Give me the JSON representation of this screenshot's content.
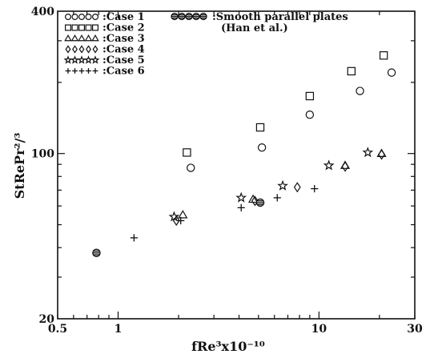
{
  "chart_data": {
    "type": "scatter",
    "title": "",
    "xlabel": "fRe³x10⁻¹⁰",
    "ylabel": "StRePr²/³",
    "xscale": "log",
    "yscale": "log",
    "xlim": [
      0.5,
      30
    ],
    "ylim": [
      20,
      400
    ],
    "xticks": [
      {
        "value": 0.5,
        "label": "0.5"
      },
      {
        "value": 1,
        "label": "1"
      },
      {
        "value": 10,
        "label": "10"
      },
      {
        "value": 30,
        "label": "30"
      }
    ],
    "yticks": [
      {
        "value": 20,
        "label": "20"
      },
      {
        "value": 100,
        "label": "100"
      },
      {
        "value": 400,
        "label": "400"
      }
    ],
    "legend_position": "top-left",
    "series": [
      {
        "name": ":Case  1",
        "marker": "circle",
        "points": [
          [
            2.3,
            87
          ],
          [
            5.2,
            106
          ],
          [
            9.0,
            146
          ],
          [
            16.0,
            184
          ],
          [
            23.0,
            220
          ]
        ]
      },
      {
        "name": ":Case  2",
        "marker": "square",
        "points": [
          [
            2.2,
            101
          ],
          [
            5.1,
            129
          ],
          [
            9.0,
            175
          ],
          [
            14.5,
            223
          ],
          [
            21.0,
            260
          ]
        ]
      },
      {
        "name": ":Case  3",
        "marker": "triangle",
        "points": [
          [
            2.1,
            55
          ],
          [
            4.7,
            64
          ],
          [
            13.5,
            89
          ],
          [
            20.5,
            100
          ]
        ]
      },
      {
        "name": ":Case  4",
        "marker": "diamond",
        "points": [
          [
            1.95,
            52
          ],
          [
            4.8,
            63
          ],
          [
            7.8,
            72
          ],
          [
            13.5,
            88
          ],
          [
            20.5,
            99
          ]
        ]
      },
      {
        "name": ":Case  5",
        "marker": "star",
        "points": [
          [
            1.9,
            54
          ],
          [
            4.1,
            65
          ],
          [
            6.6,
            73
          ],
          [
            11.2,
            89
          ],
          [
            17.5,
            101
          ]
        ]
      },
      {
        "name": ":Case  6",
        "marker": "plus",
        "points": [
          [
            1.2,
            44
          ],
          [
            2.05,
            52
          ],
          [
            4.1,
            59
          ],
          [
            6.2,
            65
          ],
          [
            9.5,
            71
          ]
        ]
      },
      {
        "name": ":Smooth parallel plates",
        "name_line2": "(Han et al.)",
        "marker": "hatched-circle",
        "points": [
          [
            0.78,
            38
          ],
          [
            5.1,
            62
          ]
        ]
      }
    ]
  }
}
